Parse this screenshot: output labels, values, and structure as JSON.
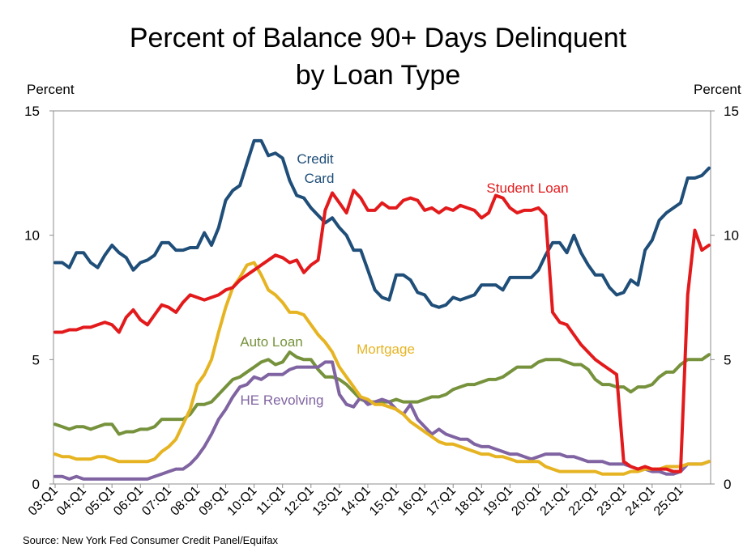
{
  "title_line1": "Percent of Balance 90+ Days Delinquent",
  "title_line2": "by Loan Type",
  "left_axis_label": "Percent",
  "right_axis_label": "Percent",
  "source": "Source: New York Fed Consumer Credit Panel/Equifax",
  "chart_data": {
    "type": "line",
    "title": "Percent of Balance 90+ Days Delinquent by Loan Type",
    "xlabel": "",
    "ylabel": "Percent",
    "ylim": [
      0,
      15
    ],
    "yticks": [
      "0",
      "5",
      "10",
      "15"
    ],
    "xticks": [
      "03:Q1",
      "04:Q1",
      "05:Q1",
      "06:Q1",
      "07:Q1",
      "08:Q1",
      "09:Q1",
      "10:Q1",
      "11:Q1",
      "12:Q1",
      "13:Q1",
      "14:Q1",
      "15:Q1",
      "16:Q1",
      "17:Q1",
      "18:Q1",
      "19:Q1",
      "20:Q1",
      "21:Q1",
      "22:Q1",
      "23:Q1",
      "24:Q1",
      "25:Q1"
    ],
    "x_start": "2003:Q1",
    "quarters_per_year": 4,
    "series": [
      {
        "name": "Credit Card",
        "label": "Credit\nCard",
        "color": "#1f4e79",
        "values": [
          8.9,
          8.9,
          8.7,
          9.3,
          9.3,
          8.9,
          8.7,
          9.2,
          9.6,
          9.3,
          9.1,
          8.6,
          8.9,
          9.0,
          9.2,
          9.7,
          9.7,
          9.4,
          9.4,
          9.5,
          9.5,
          10.1,
          9.6,
          10.3,
          11.4,
          11.8,
          12.0,
          12.9,
          13.8,
          13.8,
          13.2,
          13.3,
          13.1,
          12.2,
          11.6,
          11.5,
          11.1,
          10.8,
          10.5,
          10.7,
          10.3,
          10.0,
          9.4,
          9.4,
          8.6,
          7.8,
          7.5,
          7.4,
          8.4,
          8.4,
          8.2,
          7.7,
          7.6,
          7.2,
          7.1,
          7.2,
          7.5,
          7.4,
          7.5,
          7.6,
          8.0,
          8.0,
          8.0,
          7.8,
          8.3,
          8.3,
          8.3,
          8.3,
          8.6,
          9.2,
          9.7,
          9.7,
          9.3,
          10.0,
          9.3,
          8.8,
          8.4,
          8.4,
          7.9,
          7.6,
          7.7,
          8.2,
          8.0,
          9.4,
          9.8,
          10.6,
          10.9,
          11.1,
          11.3,
          12.3,
          12.3,
          12.4,
          12.7
        ]
      },
      {
        "name": "Student Loan",
        "label": "Student Loan",
        "color": "#e31a1c",
        "values": [
          6.1,
          6.1,
          6.2,
          6.2,
          6.3,
          6.3,
          6.4,
          6.5,
          6.4,
          6.1,
          6.7,
          7.0,
          6.6,
          6.4,
          6.8,
          7.2,
          7.1,
          6.9,
          7.3,
          7.6,
          7.5,
          7.4,
          7.5,
          7.6,
          7.8,
          7.9,
          8.2,
          8.4,
          8.6,
          8.8,
          9.0,
          9.2,
          9.1,
          8.9,
          9.0,
          8.5,
          8.8,
          9.0,
          11.0,
          11.7,
          11.3,
          10.9,
          11.8,
          11.5,
          11.0,
          11.0,
          11.3,
          11.1,
          11.1,
          11.4,
          11.5,
          11.4,
          11.0,
          11.1,
          10.9,
          11.1,
          11.0,
          11.2,
          11.1,
          11.0,
          10.7,
          10.9,
          11.6,
          11.5,
          11.1,
          10.9,
          11.0,
          11.0,
          11.1,
          10.8,
          6.9,
          6.5,
          6.4,
          6.0,
          5.6,
          5.3,
          5.0,
          4.8,
          4.6,
          4.4,
          0.9,
          0.7,
          0.6,
          0.7,
          0.6,
          0.6,
          0.6,
          0.5,
          0.5,
          7.6,
          10.2,
          9.4,
          9.6
        ]
      },
      {
        "name": "Mortgage",
        "label": "Mortgage",
        "color": "#e6b422",
        "values": [
          1.2,
          1.1,
          1.1,
          1.0,
          1.0,
          1.0,
          1.1,
          1.1,
          1.0,
          0.9,
          0.9,
          0.9,
          0.9,
          0.9,
          1.0,
          1.3,
          1.5,
          1.8,
          2.4,
          3.0,
          4.0,
          4.4,
          5.0,
          6.1,
          7.1,
          7.9,
          8.3,
          8.8,
          8.9,
          8.4,
          7.8,
          7.6,
          7.3,
          6.9,
          6.9,
          6.8,
          6.4,
          6.0,
          5.7,
          5.3,
          4.7,
          4.3,
          3.9,
          3.5,
          3.4,
          3.2,
          3.2,
          3.1,
          3.0,
          2.8,
          2.5,
          2.3,
          2.1,
          1.9,
          1.7,
          1.6,
          1.6,
          1.5,
          1.4,
          1.3,
          1.2,
          1.2,
          1.1,
          1.1,
          1.0,
          0.9,
          0.9,
          0.9,
          0.9,
          0.7,
          0.6,
          0.5,
          0.5,
          0.5,
          0.5,
          0.5,
          0.5,
          0.4,
          0.4,
          0.4,
          0.4,
          0.5,
          0.5,
          0.6,
          0.6,
          0.6,
          0.7,
          0.7,
          0.7,
          0.8,
          0.8,
          0.8,
          0.9
        ]
      },
      {
        "name": "Auto Loan",
        "label": "Auto Loan",
        "color": "#76923c",
        "values": [
          2.4,
          2.3,
          2.2,
          2.3,
          2.3,
          2.2,
          2.3,
          2.4,
          2.4,
          2.0,
          2.1,
          2.1,
          2.2,
          2.2,
          2.3,
          2.6,
          2.6,
          2.6,
          2.6,
          2.8,
          3.2,
          3.2,
          3.3,
          3.6,
          3.9,
          4.2,
          4.3,
          4.5,
          4.7,
          4.9,
          5.0,
          4.8,
          4.9,
          5.3,
          5.1,
          5.0,
          5.0,
          4.6,
          4.3,
          4.3,
          4.2,
          4.0,
          3.7,
          3.4,
          3.3,
          3.3,
          3.3,
          3.3,
          3.4,
          3.3,
          3.3,
          3.3,
          3.4,
          3.5,
          3.5,
          3.6,
          3.8,
          3.9,
          4.0,
          4.0,
          4.1,
          4.2,
          4.2,
          4.3,
          4.5,
          4.7,
          4.7,
          4.7,
          4.9,
          5.0,
          5.0,
          5.0,
          4.9,
          4.8,
          4.8,
          4.6,
          4.2,
          4.0,
          4.0,
          3.9,
          3.9,
          3.7,
          3.9,
          3.9,
          4.0,
          4.3,
          4.5,
          4.5,
          4.8,
          5.0,
          5.0,
          5.0,
          5.2
        ]
      },
      {
        "name": "HE Revolving",
        "label": "HE Revolving",
        "color": "#8064a2",
        "values": [
          0.3,
          0.3,
          0.2,
          0.3,
          0.2,
          0.2,
          0.2,
          0.2,
          0.2,
          0.2,
          0.2,
          0.2,
          0.2,
          0.2,
          0.3,
          0.4,
          0.5,
          0.6,
          0.6,
          0.8,
          1.1,
          1.5,
          2.0,
          2.6,
          3.0,
          3.5,
          3.9,
          4.0,
          4.3,
          4.2,
          4.4,
          4.4,
          4.4,
          4.6,
          4.7,
          4.7,
          4.7,
          4.7,
          4.9,
          4.9,
          3.6,
          3.2,
          3.1,
          3.5,
          3.2,
          3.3,
          3.4,
          3.3,
          3.0,
          2.8,
          3.2,
          2.6,
          2.3,
          2.0,
          2.2,
          2.0,
          1.9,
          1.8,
          1.8,
          1.6,
          1.5,
          1.5,
          1.4,
          1.3,
          1.2,
          1.2,
          1.1,
          1.0,
          1.1,
          1.2,
          1.2,
          1.2,
          1.1,
          1.1,
          1.0,
          0.9,
          0.9,
          0.9,
          0.8,
          0.8,
          0.8,
          0.7,
          0.6,
          0.6,
          0.5,
          0.5,
          0.4,
          0.4,
          0.5,
          0.8,
          0.8,
          0.8,
          0.9
        ]
      }
    ]
  }
}
